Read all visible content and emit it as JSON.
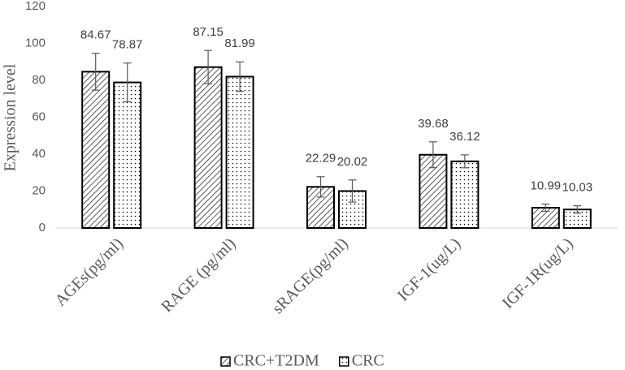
{
  "chart_data": {
    "type": "bar",
    "y_label": "Expression level",
    "categories": [
      "AGEs(pg/ml)",
      "RAGE (pg/ml)",
      "sRAGE(pg/ml)",
      "IGF-1(ug/L)",
      "IGF-1R(ug/L)"
    ],
    "series": [
      {
        "name": "CRC+T2DM",
        "pattern": "hatch",
        "color": "#000000",
        "values": [
          84.67,
          87.15,
          22.29,
          39.68,
          10.99
        ],
        "errors": [
          10,
          9,
          5.5,
          7,
          2
        ]
      },
      {
        "name": "CRC",
        "pattern": "dots",
        "color": "#000000",
        "values": [
          78.87,
          81.99,
          20.02,
          36.12,
          10.03
        ],
        "errors": [
          10.5,
          8,
          6,
          3.5,
          2
        ]
      }
    ],
    "ylim": [
      0,
      120
    ],
    "yticks": [
      0,
      20,
      40,
      60,
      80,
      100,
      120
    ],
    "grid": false,
    "legend": "bottom"
  }
}
